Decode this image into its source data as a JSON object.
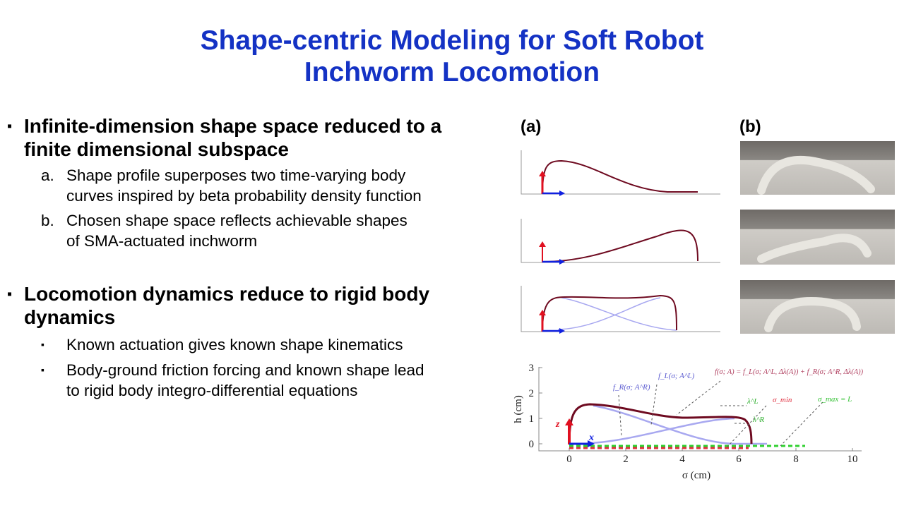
{
  "title": {
    "line1": "Shape-centric Modeling for Soft Robot",
    "line2": "Inchworm Locomotion"
  },
  "bullets": [
    {
      "marker": "▪",
      "lines": [
        "Infinite-dimension shape space reduced to a",
        "finite dimensional subspace"
      ],
      "items": [
        {
          "marker": "a.",
          "lines": [
            "Shape profile superposes two time-varying body",
            "curves inspired by beta probability density function"
          ]
        },
        {
          "marker": "b.",
          "lines": [
            "Chosen shape space reflects achievable shapes",
            "of SMA-actuated inchworm"
          ]
        }
      ]
    },
    {
      "marker": "▪",
      "lines": [
        "Locomotion dynamics reduce to rigid body",
        "dynamics"
      ],
      "items": [
        {
          "marker": "▪",
          "lines": [
            "Known actuation gives known shape kinematics"
          ]
        },
        {
          "marker": "▪",
          "lines": [
            "Body-ground friction forcing and known shape lead",
            "to rigid body integro-differential equations"
          ]
        }
      ]
    }
  ],
  "figure": {
    "label_a": "(a)",
    "label_b": "(b)"
  },
  "chart_data": {
    "type": "line",
    "xlabel": "σ (cm)",
    "ylabel": "h (cm)",
    "xlim": [
      -1,
      10
    ],
    "ylim": [
      -0.2,
      3
    ],
    "xticks": [
      "0",
      "2",
      "4",
      "6",
      "8",
      "10"
    ],
    "yticks": [
      "0",
      "1",
      "2",
      "3"
    ],
    "annotations": {
      "fR": "f_R(σ; A^R)",
      "fL": "f_L(σ; A^L)",
      "f": "f(σ; A) = f_L(σ; A^L, Δλ(A)) + f_R(σ; A^R, Δλ(A))",
      "lambdaL": "λ^L",
      "lambdaR": "λ^R",
      "sigma_min": "σ_min",
      "sigma_max": "σ_max = L",
      "x_axis": "x",
      "z_axis": "z"
    },
    "colors": {
      "total": "#7a0a22",
      "components": "#a8a8f0",
      "sigma_min": "#e03040",
      "sigma_max": "#30d030",
      "x": "#1020e0",
      "z": "#e01020"
    }
  }
}
